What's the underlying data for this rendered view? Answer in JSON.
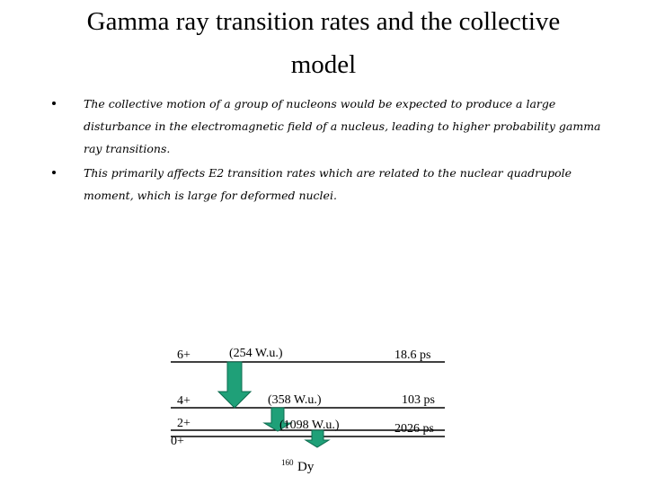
{
  "slide": {
    "title_line1": "Gamma ray transition rates and the collective",
    "title_line2": "model",
    "bullets": [
      "The collective motion of a group of nucleons would be expected to produce a large disturbance in the electromagnetic field of a nucleus, leading to higher probability gamma ray transitions.",
      "This primarily affects E2 transition rates which are related to the nuclear quadrupole moment, which is large for deformed nuclei."
    ]
  },
  "diagram": {
    "levels": [
      {
        "spin": "6+",
        "rate": "(254 W.u.)",
        "lifetime": "18.6 ps"
      },
      {
        "spin": "4+",
        "rate": "(358 W.u.)",
        "lifetime": "103 ps"
      },
      {
        "spin": "2+",
        "rate": "(1098 W.u.)",
        "lifetime": "2026 ps"
      },
      {
        "spin": "0+"
      }
    ],
    "nucleus_mass": "160",
    "nucleus_symbol": "Dy",
    "arrow_color": "#1fa078"
  }
}
